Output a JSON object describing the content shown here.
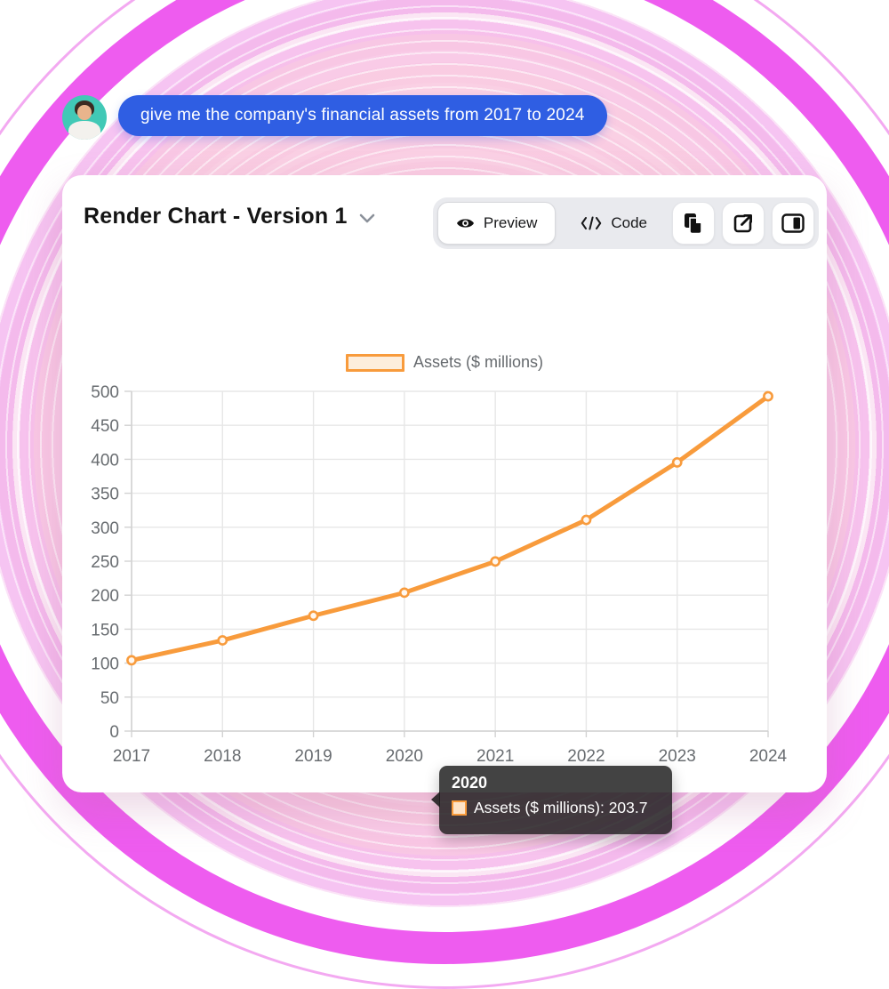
{
  "chat": {
    "message": "give me the company's financial assets from 2017 to 2024",
    "bubble_color": "#2f5ee3",
    "avatar": "user-avatar"
  },
  "panel": {
    "title": "Render Chart - Version 1",
    "tabs": {
      "preview": "Preview",
      "code": "Code"
    },
    "icon_buttons": [
      "copy",
      "open-external",
      "toggle-sidebar"
    ]
  },
  "tooltip": {
    "title": "2020",
    "text": "Assets ($ millions): 203.7",
    "swatch_fill": "#fde3c8",
    "swatch_border": "#f89b3c"
  },
  "chart_data": {
    "type": "line",
    "title": "",
    "categories": [
      "2017",
      "2018",
      "2019",
      "2020",
      "2021",
      "2022",
      "2023",
      "2024"
    ],
    "series": [
      {
        "name": "Assets ($ millions)",
        "color": "#f89b3c",
        "point_fill": "#fff7ef",
        "values": [
          104.2,
          133.5,
          169.8,
          203.7,
          249.6,
          310.8,
          395.4,
          492.7
        ]
      }
    ],
    "xlabel": "",
    "ylabel": "",
    "ylim": [
      0,
      500
    ],
    "y_tick_step": 50,
    "grid": true,
    "legend_position": "top",
    "legend_swatch": {
      "fill": "#fdeedd",
      "border": "#f89b3c"
    },
    "grid_color": "#e7e7e7",
    "axis_color": "#d2d2d2",
    "tick_label_color": "#686c70"
  },
  "background": {
    "inner_pink": "#fbd2e2",
    "ring_magenta": "#ee5cef",
    "ring_thin_pink": "#f3a9f1"
  }
}
